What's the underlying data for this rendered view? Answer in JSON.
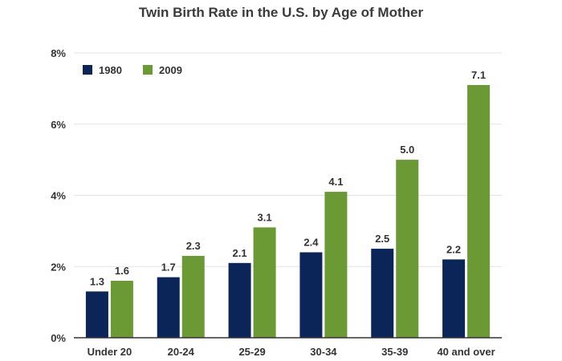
{
  "chart_data": {
    "type": "bar",
    "title": "Twin Birth Rate in the U.S. by Age of Mother",
    "xlabel": "",
    "ylabel": "",
    "categories": [
      "Under 20",
      "20-24",
      "25-29",
      "30-34",
      "35-39",
      "40 and over"
    ],
    "series": [
      {
        "name": "1980",
        "values": [
          1.3,
          1.7,
          2.1,
          2.4,
          2.5,
          2.2
        ],
        "color": "#0b2559"
      },
      {
        "name": "2009",
        "values": [
          1.6,
          2.3,
          3.1,
          4.1,
          5.0,
          7.1
        ],
        "color": "#6b9a35"
      }
    ],
    "value_labels": [
      [
        "1.3",
        "1.7",
        "2.1",
        "2.4",
        "2.5",
        "2.2"
      ],
      [
        "1.6",
        "2.3",
        "3.1",
        "4.1",
        "5.0",
        "7.1"
      ]
    ],
    "ylim": [
      0,
      8
    ],
    "yticks": [
      0,
      2,
      4,
      6,
      8
    ],
    "ytick_labels": [
      "0%",
      "2%",
      "4%",
      "6%",
      "8%"
    ],
    "grid": true,
    "legend": "top-left"
  }
}
